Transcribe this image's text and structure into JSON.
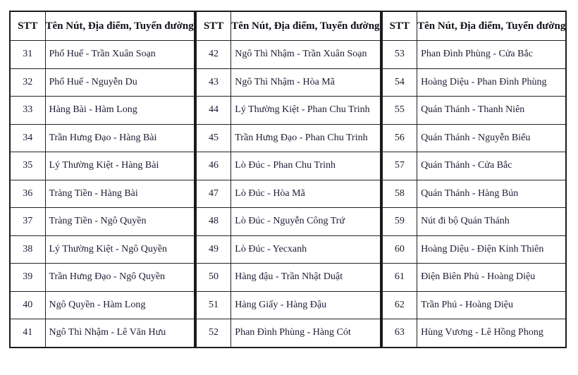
{
  "header": {
    "stt": "STT",
    "name": "Tên Nút, Địa điểm, Tuyến đường"
  },
  "groups": [
    {
      "rows": [
        {
          "stt": "31",
          "name": "Phố Huế - Trần Xuân Soạn"
        },
        {
          "stt": "32",
          "name": "Phố Huế - Nguyễn Du"
        },
        {
          "stt": "33",
          "name": "Hàng Bài - Hàm Long"
        },
        {
          "stt": "34",
          "name": "Trần Hưng Đạo - Hàng Bài"
        },
        {
          "stt": "35",
          "name": "Lý Thường Kiệt - Hàng Bài"
        },
        {
          "stt": "36",
          "name": "Tràng Tiền - Hàng Bài"
        },
        {
          "stt": "37",
          "name": "Tràng Tiền - Ngô Quyền"
        },
        {
          "stt": "38",
          "name": "Lý Thường Kiệt - Ngô Quyền"
        },
        {
          "stt": "39",
          "name": "Trần Hưng Đạo - Ngô Quyền"
        },
        {
          "stt": "40",
          "name": "Ngô Quyền - Hàm Long"
        },
        {
          "stt": "41",
          "name": "Ngô Thì Nhậm - Lê Văn Hưu"
        }
      ]
    },
    {
      "rows": [
        {
          "stt": "42",
          "name": "Ngô Thì Nhậm - Trần Xuân Soạn"
        },
        {
          "stt": "43",
          "name": "Ngô Thì Nhậm - Hòa Mã"
        },
        {
          "stt": "44",
          "name": "Lý Thường Kiệt - Phan Chu Trinh"
        },
        {
          "stt": "45",
          "name": "Trần Hưng Đạo - Phan Chu Trinh"
        },
        {
          "stt": "46",
          "name": "Lò Đúc - Phan Chu Trinh"
        },
        {
          "stt": "47",
          "name": "Lò Đúc - Hòa Mã"
        },
        {
          "stt": "48",
          "name": "Lò Đúc - Nguyễn Công Trứ"
        },
        {
          "stt": "49",
          "name": "Lò Đúc - Yecxanh"
        },
        {
          "stt": "50",
          "name": "Hàng đậu - Trần Nhật Duật"
        },
        {
          "stt": "51",
          "name": "Hàng Giấy - Hàng Đậu"
        },
        {
          "stt": "52",
          "name": "Phan Đình Phùng - Hàng Cót"
        }
      ]
    },
    {
      "rows": [
        {
          "stt": "53",
          "name": "Phan Đình Phùng - Cửa Bắc"
        },
        {
          "stt": "54",
          "name": "Hoàng Diệu - Phan Đình Phùng"
        },
        {
          "stt": "55",
          "name": "Quán Thánh - Thanh Niên"
        },
        {
          "stt": "56",
          "name": "Quán Thánh - Nguyễn Biểu"
        },
        {
          "stt": "57",
          "name": "Quán Thánh - Cửa Bắc"
        },
        {
          "stt": "58",
          "name": "Quán Thánh - Hàng Bún"
        },
        {
          "stt": "59",
          "name": "Nút đi bộ Quán Thánh"
        },
        {
          "stt": "60",
          "name": "Hoàng Diệu - Điện Kính Thiên"
        },
        {
          "stt": "61",
          "name": "Điện Biên Phủ - Hoàng Diệu"
        },
        {
          "stt": "62",
          "name": "Trần Phú - Hoàng Diệu"
        },
        {
          "stt": "63",
          "name": "Hùng Vương - Lê Hồng Phong"
        }
      ]
    }
  ],
  "colors": {
    "background": "#ffffff",
    "border": "#1b1b1b",
    "header_text": "#101018",
    "body_text": "#1c1c32"
  }
}
